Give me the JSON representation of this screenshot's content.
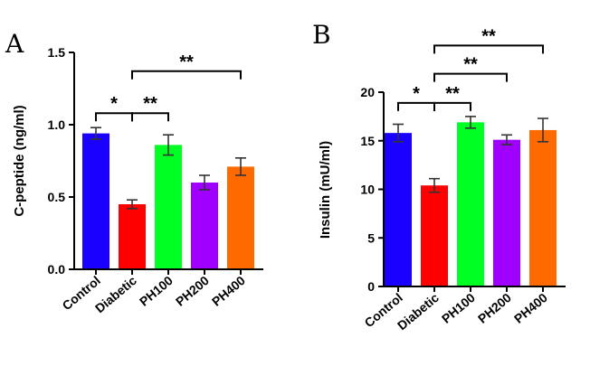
{
  "figure_name": "c-peptide-insulin-bar-charts",
  "chart_data": [
    {
      "panel": "A",
      "type": "bar",
      "categories": [
        "Control",
        "Diabetic",
        "PH100",
        "PH200",
        "PH400"
      ],
      "values": [
        0.94,
        0.45,
        0.86,
        0.6,
        0.71
      ],
      "errors": [
        0.04,
        0.03,
        0.07,
        0.05,
        0.06
      ],
      "colors": [
        "#1a00ff",
        "#ff0000",
        "#00ff22",
        "#a000ff",
        "#ff6a00"
      ],
      "title": "",
      "xlabel": "",
      "ylabel": "C-peptide (ng/ml)",
      "ylim": [
        0,
        1.5
      ],
      "yticks": [
        0,
        0.5,
        1.0,
        1.5
      ],
      "ytick_labels": [
        "0.0",
        "0.5",
        "1.0",
        "1.5"
      ],
      "significance": [
        {
          "from": 0,
          "to": 1,
          "label": "*",
          "level": 1.08
        },
        {
          "from": 1,
          "to": 2,
          "label": "**",
          "level": 1.08
        },
        {
          "from": 1,
          "to": 4,
          "label": "**",
          "level": 1.37
        }
      ]
    },
    {
      "panel": "B",
      "type": "bar",
      "categories": [
        "Control",
        "Diabetic",
        "PH100",
        "PH200",
        "PH400"
      ],
      "values": [
        15.8,
        10.4,
        16.9,
        15.1,
        16.1
      ],
      "errors": [
        0.9,
        0.7,
        0.6,
        0.5,
        1.2
      ],
      "colors": [
        "#1a00ff",
        "#ff0000",
        "#00ff22",
        "#a000ff",
        "#ff6a00"
      ],
      "title": "",
      "xlabel": "",
      "ylabel": "Insulin (mU/ml)",
      "ylim": [
        0,
        20
      ],
      "yticks": [
        0,
        5,
        10,
        15,
        20
      ],
      "ytick_labels": [
        "0",
        "5",
        "10",
        "15",
        "20"
      ],
      "significance": [
        {
          "from": 0,
          "to": 1,
          "label": "*",
          "level": 18.9
        },
        {
          "from": 1,
          "to": 2,
          "label": "**",
          "level": 18.9
        },
        {
          "from": 1,
          "to": 3,
          "label": "**",
          "level": 21.9
        },
        {
          "from": 1,
          "to": 4,
          "label": "**",
          "level": 24.8
        }
      ]
    }
  ]
}
